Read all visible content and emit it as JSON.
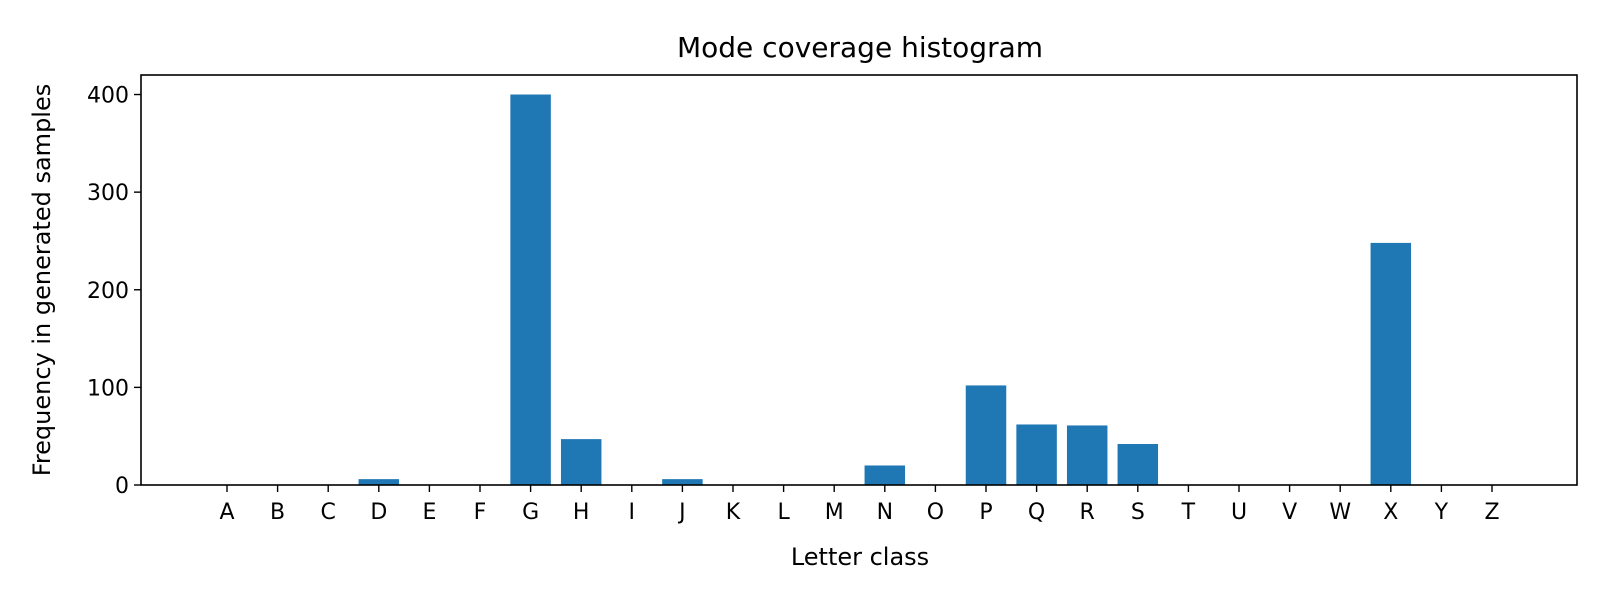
{
  "chart_data": {
    "type": "bar",
    "title": "Mode coverage histogram",
    "xlabel": "Letter class",
    "ylabel": "Frequency in generated samples",
    "categories": [
      "A",
      "B",
      "C",
      "D",
      "E",
      "F",
      "G",
      "H",
      "I",
      "J",
      "K",
      "L",
      "M",
      "N",
      "O",
      "P",
      "Q",
      "R",
      "S",
      "T",
      "U",
      "V",
      "W",
      "X",
      "Y",
      "Z"
    ],
    "values": [
      0,
      0,
      0,
      6,
      0,
      0,
      400,
      47,
      0,
      6,
      0,
      0,
      0,
      20,
      0,
      102,
      62,
      61,
      42,
      0,
      0,
      0,
      0,
      248,
      0,
      0
    ],
    "ylim": [
      0,
      420
    ],
    "yticks": [
      0,
      100,
      200,
      300,
      400
    ],
    "grid": false,
    "bar_color": "#1f77b4"
  }
}
